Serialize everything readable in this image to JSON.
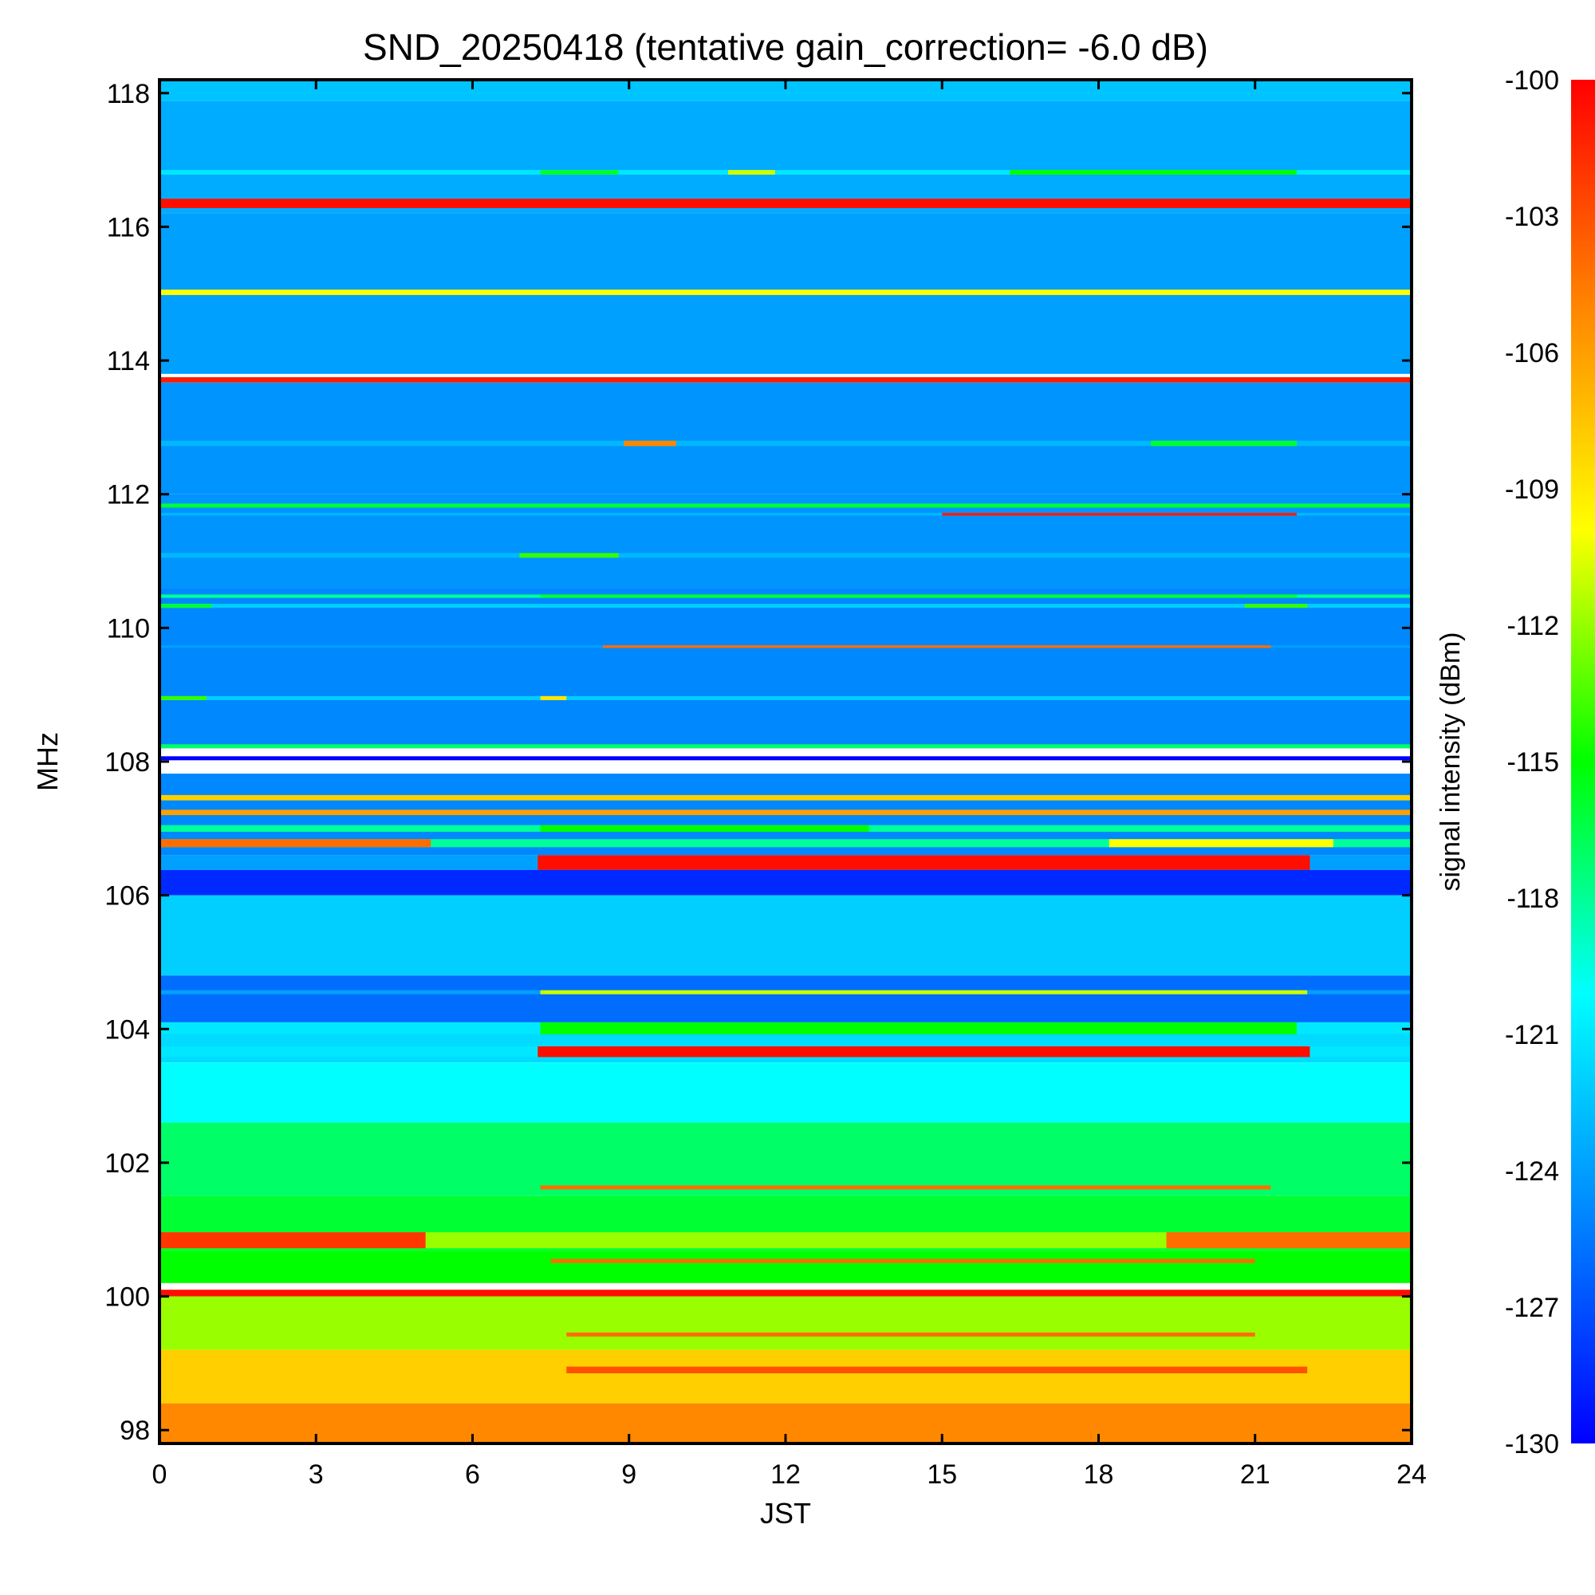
{
  "chart_data": {
    "type": "heatmap",
    "title": "SND_20250418 (tentative gain_correction= -6.0 dB)",
    "xlabel": "JST",
    "ylabel": "MHz",
    "xlim": [
      0,
      24
    ],
    "ylim": [
      97.8,
      118.2
    ],
    "x_ticks": [
      "0",
      "3",
      "6",
      "9",
      "12",
      "15",
      "18",
      "21",
      "24"
    ],
    "y_ticks": [
      "98",
      "100",
      "102",
      "104",
      "106",
      "108",
      "110",
      "112",
      "114",
      "116",
      "118"
    ],
    "colorbar": {
      "label": "signal intensity (dBm)",
      "range": [
        -130,
        -100
      ],
      "ticks": [
        "-100",
        "-103",
        "-106",
        "-109",
        "-112",
        "-115",
        "-118",
        "-121",
        "-124",
        "-127",
        "-130"
      ],
      "colormap": [
        "#0000ff",
        "#0088ff",
        "#00ffff",
        "#00ff00",
        "#ffff00",
        "#ff8800",
        "#ff0000"
      ]
    },
    "bands": [
      {
        "f0": 117.88,
        "f1": 118.2,
        "dbm": -122.5
      },
      {
        "f0": 116.2,
        "f1": 117.88,
        "dbm": -123.5
      },
      {
        "f0": 116.28,
        "f1": 116.42,
        "dbm": -100.5
      },
      {
        "f0": 116.78,
        "f1": 116.85,
        "dbm": -121,
        "spots": [
          [
            7.3,
            8.8,
            -116
          ],
          [
            10.9,
            11.8,
            -111
          ],
          [
            16.3,
            21.8,
            -115
          ]
        ]
      },
      {
        "f0": 113.8,
        "f1": 116.2,
        "dbm": -124
      },
      {
        "f0": 114.98,
        "f1": 115.06,
        "dbm": -110
      },
      {
        "f0": 113.67,
        "f1": 113.75,
        "dbm": -101
      },
      {
        "f0": 112.0,
        "f1": 113.67,
        "dbm": -124.5
      },
      {
        "f0": 112.72,
        "f1": 112.8,
        "dbm": -123,
        "spots": [
          [
            8.9,
            9.9,
            -105
          ],
          [
            19.0,
            21.8,
            -116
          ]
        ]
      },
      {
        "f0": 110.6,
        "f1": 112.0,
        "dbm": -124.5
      },
      {
        "f0": 111.8,
        "f1": 111.86,
        "dbm": -116
      },
      {
        "f0": 111.68,
        "f1": 111.72,
        "dbm": -123,
        "spots": [
          [
            15.0,
            21.8,
            -101
          ]
        ]
      },
      {
        "f0": 111.05,
        "f1": 111.12,
        "dbm": -123,
        "spots": [
          [
            6.9,
            8.8,
            -114
          ]
        ]
      },
      {
        "f0": 108.2,
        "f1": 110.6,
        "dbm": -125
      },
      {
        "f0": 110.45,
        "f1": 110.5,
        "dbm": -118,
        "spots": [
          [
            7.3,
            21.8,
            -116
          ]
        ]
      },
      {
        "f0": 110.3,
        "f1": 110.36,
        "dbm": -122,
        "spots": [
          [
            20.8,
            22.0,
            -114
          ],
          [
            0,
            1.0,
            -116
          ]
        ]
      },
      {
        "f0": 109.7,
        "f1": 109.74,
        "dbm": -124,
        "spots": [
          [
            8.5,
            21.3,
            -104
          ]
        ]
      },
      {
        "f0": 108.92,
        "f1": 108.98,
        "dbm": -122,
        "spots": [
          [
            7.3,
            7.8,
            -109
          ],
          [
            0,
            0.9,
            -114
          ]
        ]
      },
      {
        "f0": 108.2,
        "f1": 108.26,
        "dbm": -117
      },
      {
        "f0": 108.02,
        "f1": 108.08,
        "dbm": -130
      },
      {
        "f0": 106.6,
        "f1": 107.82,
        "dbm": -125
      },
      {
        "f0": 107.42,
        "f1": 107.5,
        "dbm": -108
      },
      {
        "f0": 107.2,
        "f1": 107.28,
        "dbm": -106
      },
      {
        "f0": 106.95,
        "f1": 107.05,
        "dbm": -118,
        "spots": [
          [
            7.3,
            13.6,
            -115
          ]
        ]
      },
      {
        "f0": 106.72,
        "f1": 106.84,
        "dbm": -118,
        "spots": [
          [
            0,
            5.2,
            -104
          ],
          [
            18.2,
            22.5,
            -110
          ]
        ]
      },
      {
        "f0": 106.38,
        "f1": 106.6,
        "dbm": -124,
        "spots": [
          [
            7.25,
            22.05,
            -100.5
          ]
        ]
      },
      {
        "f0": 106.0,
        "f1": 106.38,
        "dbm": -128.5
      },
      {
        "f0": 104.8,
        "f1": 106.0,
        "dbm": -122
      },
      {
        "f0": 104.1,
        "f1": 104.8,
        "dbm": -126
      },
      {
        "f0": 104.52,
        "f1": 104.58,
        "dbm": -124,
        "spots": [
          [
            7.3,
            22.0,
            -111
          ]
        ]
      },
      {
        "f0": 103.92,
        "f1": 104.1,
        "dbm": -121,
        "spots": [
          [
            7.3,
            21.8,
            -115
          ]
        ]
      },
      {
        "f0": 103.5,
        "f1": 103.92,
        "dbm": -121.5
      },
      {
        "f0": 103.58,
        "f1": 103.74,
        "dbm": -121,
        "spots": [
          [
            7.25,
            22.05,
            -100.5
          ]
        ]
      },
      {
        "f0": 102.6,
        "f1": 103.5,
        "dbm": -120
      },
      {
        "f0": 101.5,
        "f1": 102.6,
        "dbm": -117
      },
      {
        "f0": 101.6,
        "f1": 101.66,
        "dbm": -117,
        "spots": [
          [
            7.3,
            21.3,
            -104
          ]
        ]
      },
      {
        "f0": 100.68,
        "f1": 101.5,
        "dbm": -116
      },
      {
        "f0": 100.72,
        "f1": 100.96,
        "dbm": -112,
        "spots": [
          [
            0,
            5.1,
            -102
          ],
          [
            19.3,
            24,
            -104
          ]
        ]
      },
      {
        "f0": 100.2,
        "f1": 100.68,
        "dbm": -115
      },
      {
        "f0": 100.5,
        "f1": 100.56,
        "dbm": -115,
        "spots": [
          [
            7.5,
            21.0,
            -104
          ]
        ]
      },
      {
        "f0": 100.0,
        "f1": 100.1,
        "dbm": -100.5
      },
      {
        "f0": 99.2,
        "f1": 100.0,
        "dbm": -112
      },
      {
        "f0": 99.4,
        "f1": 99.46,
        "dbm": -112,
        "spots": [
          [
            7.8,
            21.0,
            -104
          ]
        ]
      },
      {
        "f0": 98.4,
        "f1": 99.2,
        "dbm": -108
      },
      {
        "f0": 98.85,
        "f1": 98.95,
        "dbm": -108,
        "spots": [
          [
            7.8,
            22.0,
            -103
          ]
        ]
      },
      {
        "f0": 97.8,
        "f1": 98.4,
        "dbm": -105
      }
    ]
  }
}
